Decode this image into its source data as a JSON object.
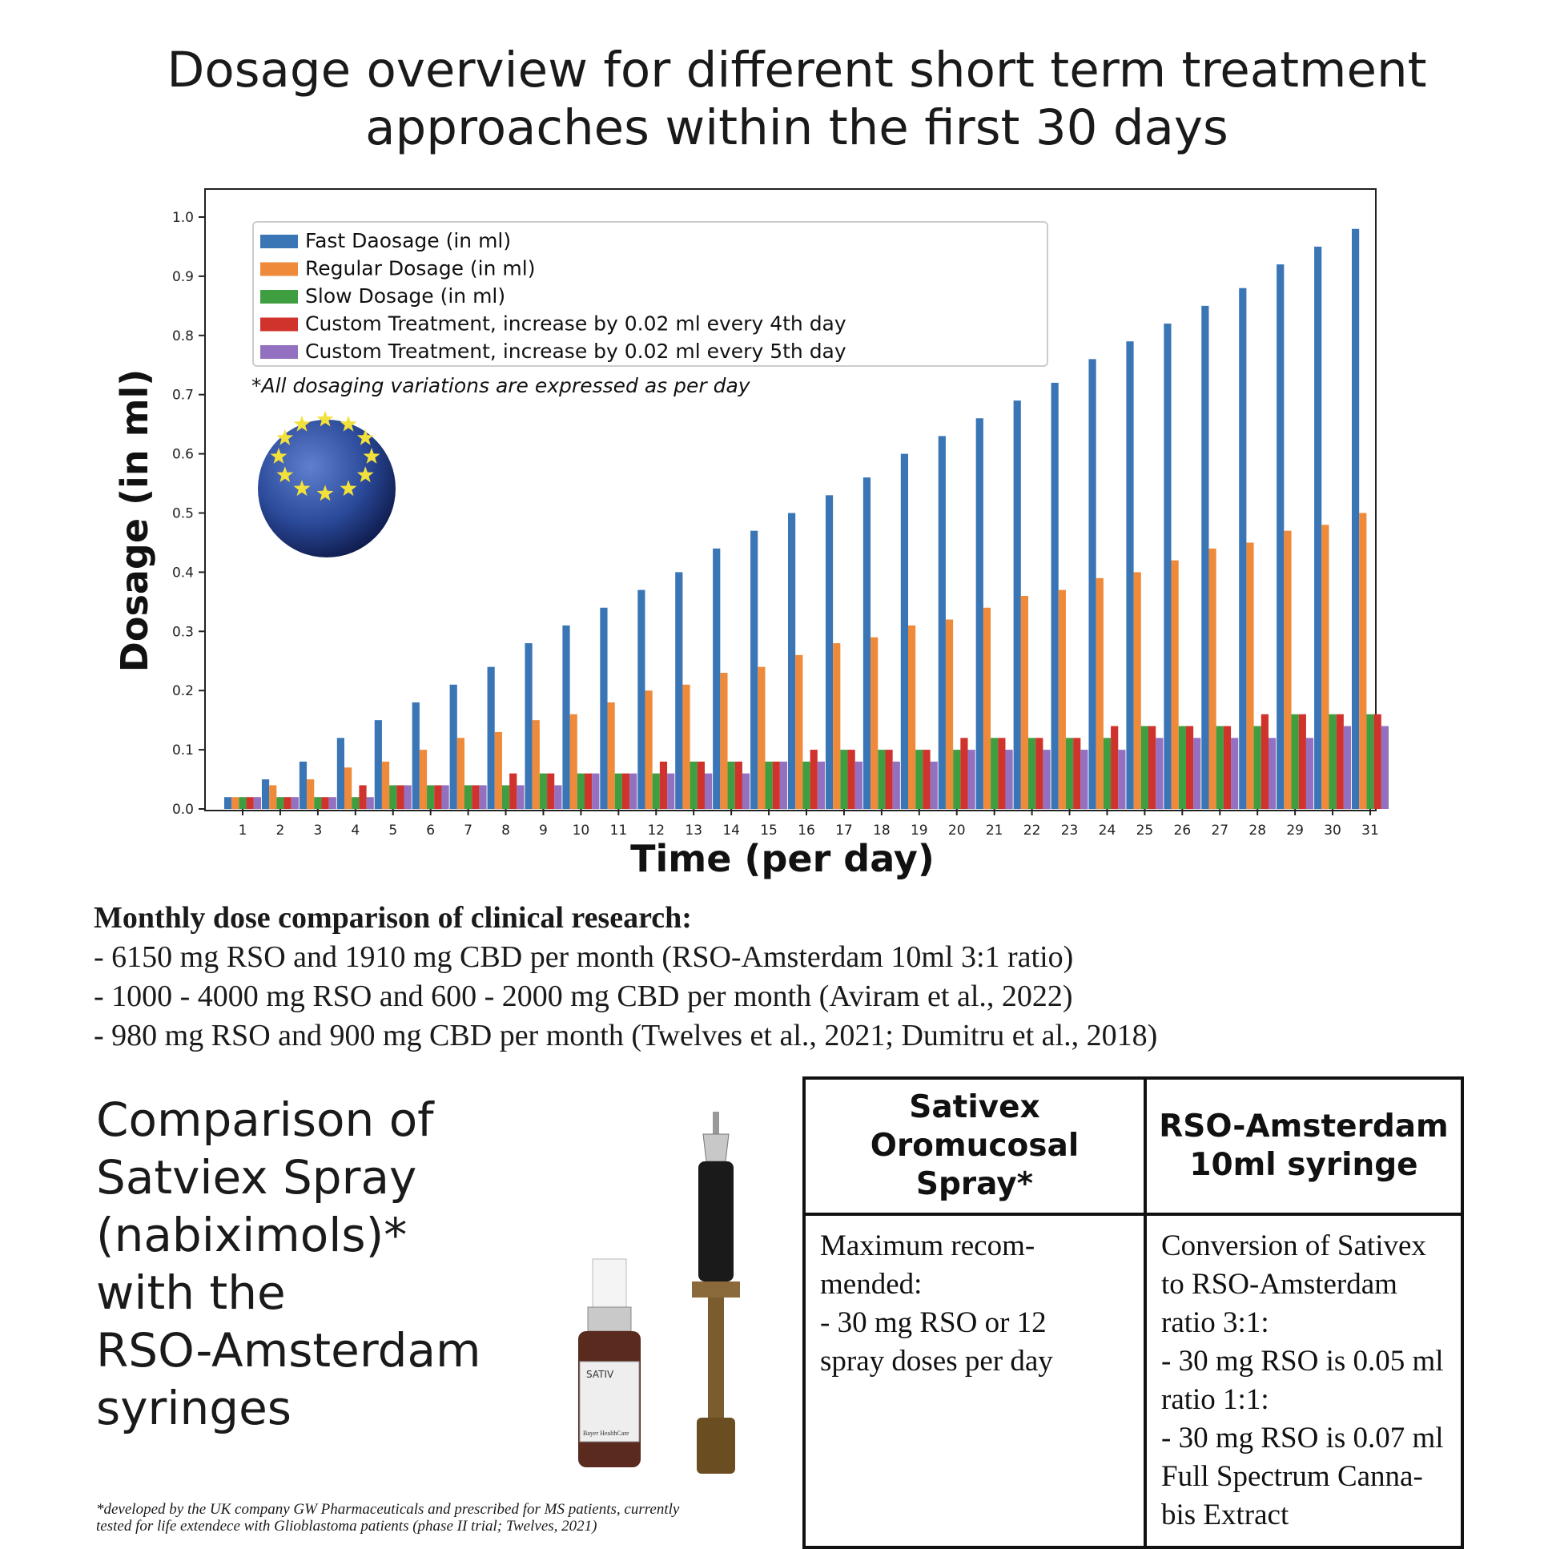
{
  "title_line1": "Dosage overview for different short term treatment",
  "title_line2": "approaches within the first 30 days",
  "chart_data": {
    "type": "bar",
    "xlabel": "Time (per day)",
    "ylabel": "Dosage (in ml)",
    "ylim": [
      0,
      1.0
    ],
    "y_ticks": [
      "0.0",
      "0.1",
      "0.2",
      "0.3",
      "0.4",
      "0.5",
      "0.6",
      "0.7",
      "0.8",
      "0.9",
      "1.0"
    ],
    "categories": [
      1,
      2,
      3,
      4,
      5,
      6,
      7,
      8,
      9,
      10,
      11,
      12,
      13,
      14,
      15,
      16,
      17,
      18,
      19,
      20,
      21,
      22,
      23,
      24,
      25,
      26,
      27,
      28,
      29,
      30,
      31
    ],
    "annotation": "*All dosaging variations are expressed as per day",
    "legend_position": "top-left",
    "series": [
      {
        "name": "Fast Daosage (in ml)",
        "color": "#3a75b5",
        "values": [
          0.02,
          0.05,
          0.08,
          0.12,
          0.15,
          0.18,
          0.21,
          0.24,
          0.28,
          0.31,
          0.34,
          0.37,
          0.4,
          0.44,
          0.47,
          0.5,
          0.53,
          0.56,
          0.6,
          0.63,
          0.66,
          0.69,
          0.72,
          0.76,
          0.79,
          0.82,
          0.85,
          0.88,
          0.92,
          0.95,
          0.98
        ]
      },
      {
        "name": "Regular Dosage (in ml)",
        "color": "#ee8a3a",
        "values": [
          0.02,
          0.04,
          0.05,
          0.07,
          0.08,
          0.1,
          0.12,
          0.13,
          0.15,
          0.16,
          0.18,
          0.2,
          0.21,
          0.23,
          0.24,
          0.26,
          0.28,
          0.29,
          0.31,
          0.32,
          0.34,
          0.36,
          0.37,
          0.39,
          0.4,
          0.42,
          0.44,
          0.45,
          0.47,
          0.48,
          0.5
        ]
      },
      {
        "name": "Slow Dosage (in ml)",
        "color": "#3f9e3f",
        "values": [
          0.02,
          0.02,
          0.02,
          0.02,
          0.04,
          0.04,
          0.04,
          0.04,
          0.06,
          0.06,
          0.06,
          0.06,
          0.08,
          0.08,
          0.08,
          0.08,
          0.1,
          0.1,
          0.1,
          0.1,
          0.12,
          0.12,
          0.12,
          0.12,
          0.14,
          0.14,
          0.14,
          0.14,
          0.16,
          0.16,
          0.16
        ]
      },
      {
        "name": "Custom Treatment, increase by 0.02 ml every 4th day",
        "color": "#d0322c",
        "values": [
          0.02,
          0.02,
          0.02,
          0.04,
          0.04,
          0.04,
          0.04,
          0.06,
          0.06,
          0.06,
          0.06,
          0.08,
          0.08,
          0.08,
          0.08,
          0.1,
          0.1,
          0.1,
          0.1,
          0.12,
          0.12,
          0.12,
          0.12,
          0.14,
          0.14,
          0.14,
          0.14,
          0.16,
          0.16,
          0.16,
          0.16
        ]
      },
      {
        "name": "Custom Treatment, increase by 0.02 ml every 5th day",
        "color": "#9370c0",
        "values": [
          0.02,
          0.02,
          0.02,
          0.02,
          0.04,
          0.04,
          0.04,
          0.04,
          0.04,
          0.06,
          0.06,
          0.06,
          0.06,
          0.06,
          0.08,
          0.08,
          0.08,
          0.08,
          0.08,
          0.1,
          0.1,
          0.1,
          0.1,
          0.1,
          0.12,
          0.12,
          0.12,
          0.12,
          0.12,
          0.14,
          0.14
        ]
      }
    ]
  },
  "monthly": {
    "heading": "Monthly dose comparison of clinical research:",
    "items": [
      "- 6150 mg RSO and 1910 mg CBD per month (RSO-Amsterdam 10ml 3:1 ratio)",
      "- 1000 - 4000 mg RSO and 600 - 2000 mg CBD per month (Aviram et al., 2022)",
      "- 980 mg RSO and 900 mg CBD per month  (Twelves et al., 2021; Dumitru et al., 2018)"
    ]
  },
  "comparison": {
    "lines": [
      "Comparison of",
      "Satviex Spray",
      "(nabiximols)*",
      "with the",
      "RSO-Amsterdam",
      "syringes"
    ],
    "footnote_line1": "*developed by the UK company GW Pharmaceuticals and prescribed for MS patients, currently",
    "footnote_line2": "tested for life extendece with Glioblastoma patients (phase II trial; Twelves, 2021)"
  },
  "product_labels": {
    "spray_brand": "SATIV",
    "spray_maker": "Bayer HealthCare"
  },
  "table": {
    "col1_header": [
      "Sativex",
      "Oromucosal",
      "Spray*"
    ],
    "col2_header": [
      "RSO-Amsterdam",
      "10ml syringe"
    ],
    "col1_body": [
      "Maximum recom-",
      "mended:",
      "- 30 mg RSO or 12",
      "spray doses per day"
    ],
    "col2_body": [
      "Conversion of Sativex",
      "to RSO-Amsterdam",
      "ratio 3:1:",
      "- 30 mg RSO is 0.05 ml",
      "ratio 1:1:",
      "- 30 mg RSO is 0.07 ml",
      "Full Spectrum Canna-",
      "bis Extract"
    ]
  }
}
